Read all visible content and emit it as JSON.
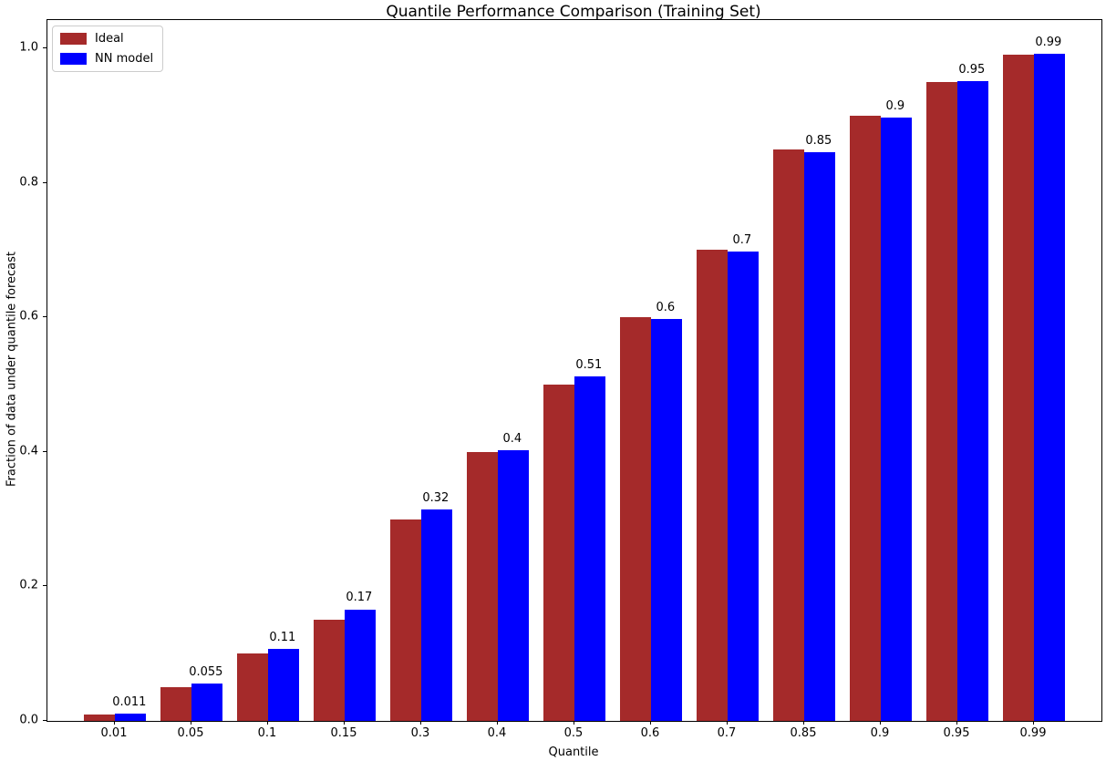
{
  "title": "Quantile Performance Comparison (Training Set)",
  "chart_data": {
    "type": "bar",
    "title": "Quantile Performance Comparison (Training Set)",
    "xlabel": "Quantile",
    "ylabel": "Fraction of data under quantile forecast",
    "categories": [
      "0.01",
      "0.05",
      "0.1",
      "0.15",
      "0.3",
      "0.4",
      "0.5",
      "0.6",
      "0.7",
      "0.85",
      "0.9",
      "0.95",
      "0.99"
    ],
    "series": [
      {
        "name": "Ideal",
        "color": "#A52A2A",
        "values": [
          0.01,
          0.05,
          0.1,
          0.15,
          0.3,
          0.4,
          0.5,
          0.6,
          0.7,
          0.85,
          0.9,
          0.95,
          0.99
        ]
      },
      {
        "name": "NN model",
        "color": "#0000FF",
        "values": [
          0.011,
          0.055,
          0.107,
          0.166,
          0.315,
          0.403,
          0.512,
          0.597,
          0.698,
          0.846,
          0.897,
          0.951,
          0.992
        ],
        "value_labels": [
          "0.011",
          "0.055",
          "0.11",
          "0.17",
          "0.32",
          "0.4",
          "0.51",
          "0.6",
          "0.7",
          "0.85",
          "0.9",
          "0.95",
          "0.99"
        ]
      }
    ],
    "yticks": [
      "0.0",
      "0.2",
      "0.4",
      "0.6",
      "0.8",
      "1.0"
    ],
    "ylim": [
      0,
      1.042
    ],
    "grid": false,
    "legend_position": "upper left",
    "background_color": "#ffffff",
    "text_color": "#000000"
  }
}
